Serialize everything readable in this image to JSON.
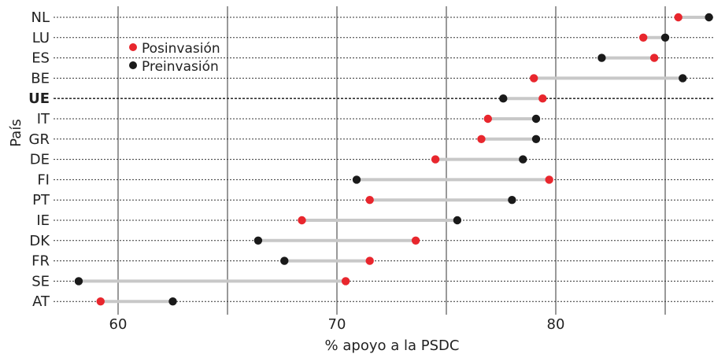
{
  "chart_data": {
    "type": "dumbbell",
    "xlabel": "% apoyo a la PSDC",
    "ylabel": "País",
    "xlim": [
      57,
      87
    ],
    "xticks": [
      60,
      70,
      80
    ],
    "grid": "vertical lines every 5, dotted row lines",
    "legend_position": "top-left",
    "categories": [
      "NL",
      "LU",
      "ES",
      "BE",
      "UE",
      "IT",
      "GR",
      "DE",
      "FI",
      "PT",
      "IE",
      "DK",
      "FR",
      "SE",
      "AT"
    ],
    "highlight_category": "UE",
    "series": [
      {
        "name": "Posinvasión",
        "color": "#e8262d",
        "values": [
          85.6,
          84.0,
          84.5,
          79.0,
          79.4,
          76.9,
          76.6,
          74.5,
          79.7,
          71.5,
          68.4,
          73.6,
          71.5,
          70.4,
          59.2
        ]
      },
      {
        "name": "Preinvasión",
        "color": "#1a1a1a",
        "values": [
          87.0,
          85.0,
          82.1,
          85.8,
          77.6,
          79.1,
          79.1,
          78.5,
          70.9,
          78.0,
          75.5,
          66.4,
          67.6,
          58.2,
          62.5
        ]
      }
    ],
    "connector_color": "#c8c8c8"
  }
}
